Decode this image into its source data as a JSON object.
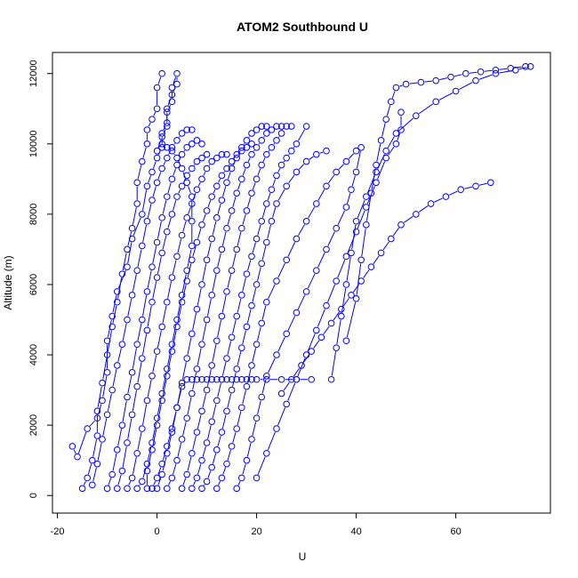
{
  "chart_data": {
    "type": "line",
    "title": "ATOM2 Southbound U",
    "xlabel": "U",
    "ylabel": "Altitude (m)",
    "xlim": [
      -21,
      79
    ],
    "ylim": [
      -500,
      12600
    ],
    "xticks": [
      -20,
      0,
      20,
      40,
      60
    ],
    "yticks": [
      0,
      2000,
      4000,
      6000,
      8000,
      10000,
      12000
    ],
    "grid": false,
    "legend": "none",
    "color": "#0000ff",
    "markers": "open-circle",
    "series": [
      {
        "x": [
          -17,
          -16,
          -14,
          -12,
          -11,
          -10,
          -10,
          -9,
          -8,
          -6,
          -5,
          -3,
          -2,
          -1,
          0,
          1,
          1,
          2,
          2,
          3,
          4,
          4,
          3,
          3,
          2,
          2,
          1,
          0
        ],
        "y": [
          1400,
          1100,
          1900,
          2200,
          2700,
          3500,
          4400,
          5100,
          5800,
          6500,
          7300,
          8000,
          8800,
          9200,
          9600,
          9900,
          10300,
          10600,
          11000,
          11400,
          11700,
          12000,
          11600,
          11200,
          10900,
          10500,
          10200,
          9800
        ]
      },
      {
        "x": [
          -15,
          -14,
          -13,
          -12,
          -12,
          -11,
          -10,
          -9,
          -8,
          -7,
          -6,
          -5,
          -4,
          -4,
          -3,
          -2,
          -2,
          -1,
          0,
          0,
          1
        ],
        "y": [
          200,
          500,
          1000,
          1700,
          2400,
          3200,
          4000,
          4800,
          5500,
          6300,
          7000,
          7600,
          8300,
          8900,
          9500,
          10000,
          10400,
          10700,
          11000,
          11600,
          12000
        ]
      },
      {
        "x": [
          -13,
          -12,
          -11,
          -10,
          -9,
          -8,
          -7,
          -6,
          -5,
          -4,
          -3,
          -2,
          -1,
          0,
          1,
          2,
          3,
          4,
          5,
          6,
          7
        ],
        "y": [
          300,
          900,
          1600,
          2300,
          3000,
          3700,
          4300,
          5000,
          5700,
          6400,
          7100,
          7800,
          8400,
          8900,
          9300,
          9600,
          9900,
          10100,
          10300,
          10400,
          10400
        ]
      },
      {
        "x": [
          -10,
          -9,
          -8,
          -7,
          -6,
          -5,
          -4,
          -3,
          -2,
          -1,
          0,
          1,
          2,
          3,
          4,
          5,
          6,
          7,
          8,
          9
        ],
        "y": [
          200,
          600,
          1300,
          2000,
          2800,
          3500,
          4300,
          5000,
          5800,
          6500,
          7200,
          7900,
          8500,
          9000,
          9400,
          9700,
          9900,
          10000,
          10100,
          10000
        ]
      },
      {
        "x": [
          -8,
          -7,
          -6,
          -5,
          -4,
          -3,
          -2,
          -1,
          0,
          1,
          2,
          3,
          4,
          5,
          6,
          7,
          8,
          9,
          10
        ],
        "y": [
          200,
          700,
          1500,
          2300,
          3100,
          3900,
          4700,
          5500,
          6200,
          6900,
          7500,
          8000,
          8500,
          8800,
          9100,
          9300,
          9500,
          9600,
          9700
        ]
      },
      {
        "x": [
          -6,
          -5,
          -4,
          -3,
          -2,
          -1,
          0,
          1,
          2,
          3,
          4,
          5,
          6,
          7,
          8,
          9,
          10,
          11,
          12,
          13,
          14
        ],
        "y": [
          200,
          500,
          1200,
          1900,
          2700,
          3400,
          4100,
          4800,
          5500,
          6200,
          6800,
          7400,
          7900,
          8300,
          8700,
          9000,
          9300,
          9500,
          9600,
          9700,
          9700
        ]
      },
      {
        "x": [
          -4,
          -3,
          -2,
          -1,
          0,
          1,
          2,
          3,
          4,
          5,
          6,
          7,
          7,
          7,
          6,
          5,
          4,
          3,
          2,
          1
        ],
        "y": [
          200,
          400,
          900,
          1500,
          2200,
          2900,
          3600,
          4300,
          5000,
          5700,
          6400,
          7100,
          7800,
          8500,
          8900,
          9300,
          9600,
          9800,
          9900,
          10000
        ]
      },
      {
        "x": [
          -2,
          -2,
          -1,
          0,
          1,
          2,
          3,
          4,
          5,
          6,
          7,
          8,
          9,
          10,
          11,
          12,
          13,
          14,
          15,
          16,
          17,
          18,
          19
        ],
        "y": [
          200,
          700,
          1300,
          2000,
          2700,
          3400,
          4100,
          4800,
          5500,
          6100,
          6700,
          7200,
          7700,
          8100,
          8500,
          8800,
          9100,
          9300,
          9500,
          9700,
          9800,
          9900,
          10000
        ]
      },
      {
        "x": [
          0,
          1,
          2,
          3,
          4,
          5,
          6,
          7,
          8,
          9,
          10,
          11,
          12,
          13,
          14,
          15,
          16,
          17,
          18,
          19,
          20,
          21,
          22
        ],
        "y": [
          200,
          600,
          1200,
          1800,
          2500,
          3200,
          3900,
          4600,
          5300,
          6000,
          6700,
          7300,
          7900,
          8400,
          8900,
          9300,
          9600,
          9900,
          10100,
          10300,
          10400,
          10500,
          10500
        ]
      },
      {
        "x": [
          2,
          3,
          4,
          5,
          6,
          7,
          8,
          9,
          10,
          11,
          12,
          13,
          14,
          15,
          16,
          17,
          18,
          19,
          20,
          21,
          22,
          23,
          24,
          25,
          26,
          27
        ],
        "y": [
          200,
          500,
          1000,
          1600,
          2200,
          2900,
          3600,
          4300,
          5000,
          5700,
          6400,
          7000,
          7600,
          8100,
          8600,
          9000,
          9400,
          9700,
          9900,
          10100,
          10300,
          10400,
          10500,
          10500,
          10500,
          10500
        ]
      },
      {
        "x": [
          5,
          6,
          7,
          8,
          9,
          10,
          11,
          12,
          13,
          14,
          15,
          16,
          17,
          18,
          19,
          20,
          21,
          22,
          23,
          24,
          25
        ],
        "y": [
          200,
          600,
          1200,
          1800,
          2400,
          3000,
          3700,
          4400,
          5100,
          5800,
          6400,
          7000,
          7600,
          8100,
          8600,
          9000,
          9400,
          9700,
          9900,
          10100,
          10300
        ]
      },
      {
        "x": [
          7,
          8,
          9,
          10,
          11,
          12,
          13,
          14,
          15,
          16,
          17,
          18,
          19,
          20,
          21,
          22,
          23,
          24,
          25,
          26,
          27,
          28,
          30
        ],
        "y": [
          200,
          500,
          1000,
          1500,
          2100,
          2700,
          3300,
          3900,
          4500,
          5100,
          5700,
          6300,
          6800,
          7300,
          7800,
          8300,
          8700,
          9100,
          9400,
          9600,
          9800,
          10000,
          10500
        ]
      },
      {
        "x": [
          9,
          10,
          11,
          12,
          13,
          14,
          15,
          16,
          17,
          18,
          19,
          20,
          21,
          22,
          23,
          24,
          26,
          28,
          30,
          32,
          34
        ],
        "y": [
          200,
          400,
          800,
          1300,
          1800,
          2400,
          3000,
          3600,
          4200,
          4800,
          5400,
          6000,
          6600,
          7200,
          7800,
          8300,
          8800,
          9200,
          9500,
          9700,
          9800
        ]
      },
      {
        "x": [
          12,
          13,
          14,
          15,
          16,
          17,
          18,
          19,
          20,
          21,
          22,
          24,
          26,
          28,
          30,
          32,
          34,
          36,
          38,
          40
        ],
        "y": [
          200,
          500,
          900,
          1400,
          1900,
          2500,
          3100,
          3700,
          4300,
          4900,
          5500,
          6100,
          6700,
          7300,
          7800,
          8300,
          8800,
          9200,
          9500,
          9800
        ]
      },
      {
        "x": [
          16,
          17,
          18,
          19,
          20,
          21,
          22,
          24,
          26,
          28,
          30,
          32,
          34,
          36,
          38,
          39,
          40,
          41
        ],
        "y": [
          200,
          500,
          1000,
          1600,
          2200,
          2800,
          3400,
          4000,
          4600,
          5200,
          5800,
          6400,
          7000,
          7600,
          8200,
          8700,
          9200,
          9900
        ]
      },
      {
        "x": [
          20,
          22,
          24,
          26,
          28,
          30,
          32,
          34,
          36,
          38,
          40,
          42,
          44,
          46,
          48,
          49,
          49
        ],
        "y": [
          500,
          1200,
          1900,
          2600,
          3300,
          4000,
          4700,
          5400,
          6100,
          6800,
          7500,
          8200,
          8900,
          9600,
          10000,
          10400,
          10900
        ]
      },
      {
        "x": [
          25,
          27,
          29,
          31,
          33,
          35,
          37,
          39,
          41,
          43,
          45,
          47,
          49,
          52,
          55,
          58,
          61,
          64,
          67
        ],
        "y": [
          2900,
          3300,
          3700,
          4100,
          4500,
          4900,
          5300,
          5700,
          6100,
          6500,
          6900,
          7300,
          7700,
          8000,
          8300,
          8500,
          8700,
          8800,
          8900
        ]
      },
      {
        "x": [
          35,
          36,
          37,
          38,
          39,
          40,
          42,
          44,
          46,
          48,
          52,
          56,
          60,
          64,
          68,
          72,
          75
        ],
        "y": [
          3300,
          4200,
          5100,
          6000,
          6900,
          7800,
          8500,
          9200,
          9800,
          10300,
          10800,
          11200,
          11500,
          11800,
          12000,
          12100,
          12200
        ]
      },
      {
        "x": [
          38,
          40,
          41,
          42,
          43,
          44,
          45,
          46,
          47,
          48,
          50,
          53,
          56,
          59,
          62,
          65,
          68,
          71,
          74
        ],
        "y": [
          4400,
          5600,
          6700,
          7700,
          8600,
          9400,
          10100,
          10700,
          11200,
          11600,
          11700,
          11750,
          11800,
          11900,
          12000,
          12050,
          12100,
          12150,
          12200
        ]
      },
      {
        "x": [
          -1,
          0,
          1,
          2,
          3,
          4,
          5,
          6,
          7,
          8,
          9,
          10,
          11,
          12,
          13,
          14,
          15,
          16,
          17,
          18,
          19,
          20,
          22,
          25,
          28,
          31
        ],
        "y": [
          200,
          500,
          900,
          1400,
          1900,
          2500,
          3100,
          3300,
          3300,
          3300,
          3300,
          3300,
          3300,
          3300,
          3300,
          3300,
          3300,
          3300,
          3300,
          3300,
          3300,
          3300,
          3300,
          3300,
          3300,
          3300
        ]
      }
    ]
  }
}
